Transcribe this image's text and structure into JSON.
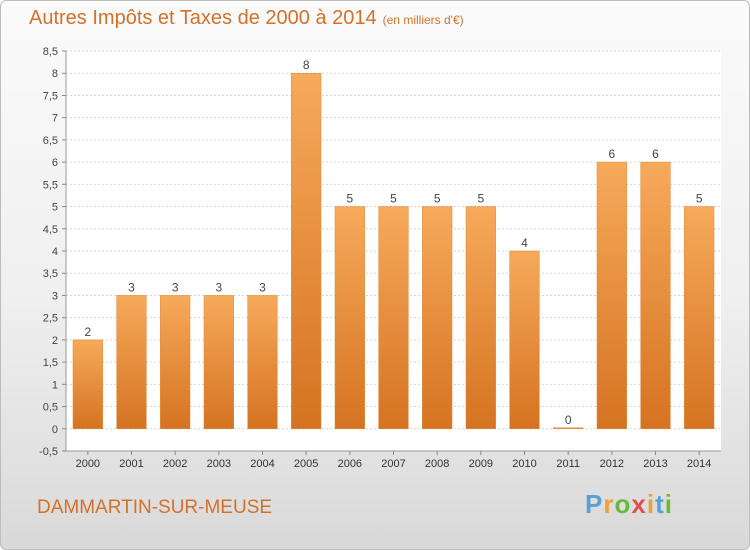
{
  "header": {
    "title": "Autres Impôts et Taxes de 2000 à 2014",
    "subtitle": "(en milliers d'€)"
  },
  "footer": {
    "town": "DAMMARTIN-SUR-MEUSE",
    "logo_text": "Proxiti"
  },
  "colors": {
    "bar_light": "#f6aa5a",
    "bar_dark": "#d57322",
    "text_accent": "#d3712a",
    "logo": [
      "#5aa0d8",
      "#f0a030",
      "#6aba3a",
      "#e05050",
      "#f0a030",
      "#5aa0d8",
      "#6aba3a"
    ]
  },
  "chart_data": {
    "type": "bar",
    "categories": [
      "2000",
      "2001",
      "2002",
      "2003",
      "2004",
      "2005",
      "2006",
      "2007",
      "2008",
      "2009",
      "2010",
      "2011",
      "2012",
      "2013",
      "2014"
    ],
    "values": [
      2,
      3,
      3,
      3,
      3,
      8,
      5,
      5,
      5,
      5,
      4,
      0,
      6,
      6,
      5
    ],
    "data_labels": [
      "2",
      "3",
      "3",
      "3",
      "3",
      "8",
      "5",
      "5",
      "5",
      "5",
      "4",
      "0",
      "6",
      "6",
      "5"
    ],
    "title": "Autres Impôts et Taxes de 2000 à 2014",
    "xlabel": "",
    "ylabel": "",
    "ylim": [
      -0.5,
      8.5
    ],
    "yticks": [
      "-0,5",
      "0",
      "0,5",
      "1",
      "1,5",
      "2",
      "2,5",
      "3",
      "3,5",
      "4",
      "4,5",
      "5",
      "5,5",
      "6",
      "6,5",
      "7",
      "7,5",
      "8",
      "8,5"
    ],
    "grid": true
  }
}
